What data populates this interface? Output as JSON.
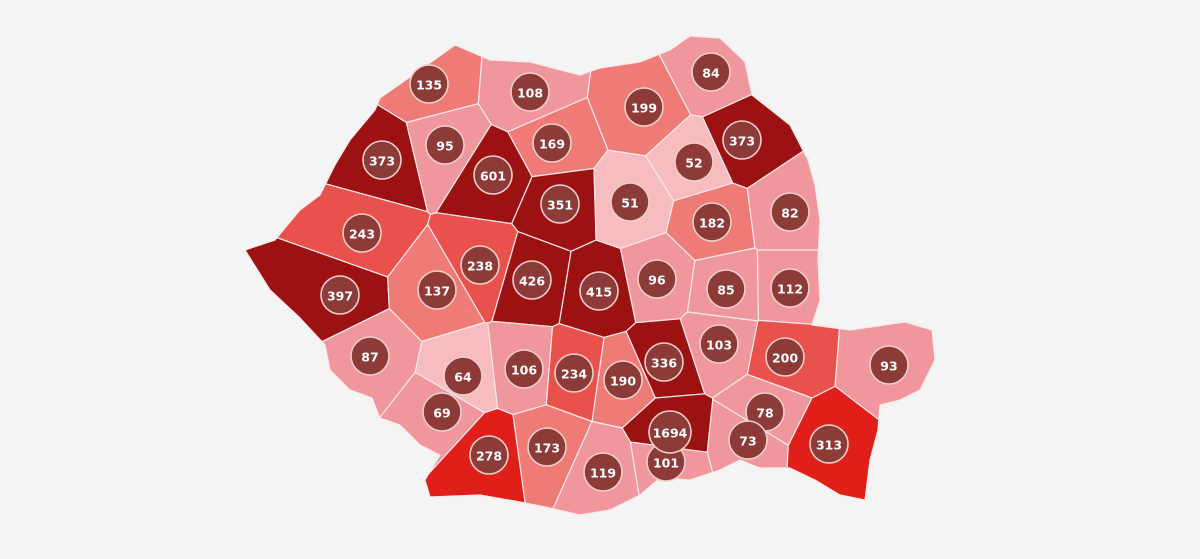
{
  "legend_colors": {
    "darkest": "#9c1212",
    "bright_red": "#e01f1a",
    "medium_red": "#e9514c",
    "salmon": "#ef7b77",
    "pink": "#f0979d",
    "light_pink": "#f6bcc0"
  },
  "counties": [
    {
      "value": "135",
      "color": "#ef7b77"
    },
    {
      "value": "108",
      "color": "#f0979d"
    },
    {
      "value": "199",
      "color": "#ef7b77"
    },
    {
      "value": "84",
      "color": "#f0979d"
    },
    {
      "value": "373",
      "color": "#9c1212"
    },
    {
      "value": "95",
      "color": "#f0979d"
    },
    {
      "value": "601",
      "color": "#9c1212"
    },
    {
      "value": "169",
      "color": "#ef7b77"
    },
    {
      "value": "373",
      "color": "#9c1212"
    },
    {
      "value": "52",
      "color": "#f6bcc0"
    },
    {
      "value": "351",
      "color": "#9c1212"
    },
    {
      "value": "51",
      "color": "#f6bcc0"
    },
    {
      "value": "182",
      "color": "#ef7b77"
    },
    {
      "value": "82",
      "color": "#f0979d"
    },
    {
      "value": "243",
      "color": "#e9514c"
    },
    {
      "value": "238",
      "color": "#e9514c"
    },
    {
      "value": "426",
      "color": "#9c1212"
    },
    {
      "value": "415",
      "color": "#9c1212"
    },
    {
      "value": "96",
      "color": "#f0979d"
    },
    {
      "value": "85",
      "color": "#f0979d"
    },
    {
      "value": "112",
      "color": "#f0979d"
    },
    {
      "value": "397",
      "color": "#9c1212"
    },
    {
      "value": "137",
      "color": "#ef7b77"
    },
    {
      "value": "87",
      "color": "#f0979d"
    },
    {
      "value": "64",
      "color": "#f6bcc0"
    },
    {
      "value": "106",
      "color": "#f0979d"
    },
    {
      "value": "234",
      "color": "#e9514c"
    },
    {
      "value": "190",
      "color": "#ef7b77"
    },
    {
      "value": "336",
      "color": "#9c1212"
    },
    {
      "value": "103",
      "color": "#f0979d"
    },
    {
      "value": "200",
      "color": "#e9514c"
    },
    {
      "value": "93",
      "color": "#f0979d"
    },
    {
      "value": "69",
      "color": "#f0979d"
    },
    {
      "value": "278",
      "color": "#e01f1a"
    },
    {
      "value": "173",
      "color": "#ef7b77"
    },
    {
      "value": "119",
      "color": "#f0979d"
    },
    {
      "value": "101",
      "color": "#f0979d"
    },
    {
      "value": "1694",
      "color": "#9c1212"
    },
    {
      "value": "78",
      "color": "#f0979d"
    },
    {
      "value": "73",
      "color": "#f0979d"
    },
    {
      "value": "313",
      "color": "#e01f1a"
    }
  ]
}
